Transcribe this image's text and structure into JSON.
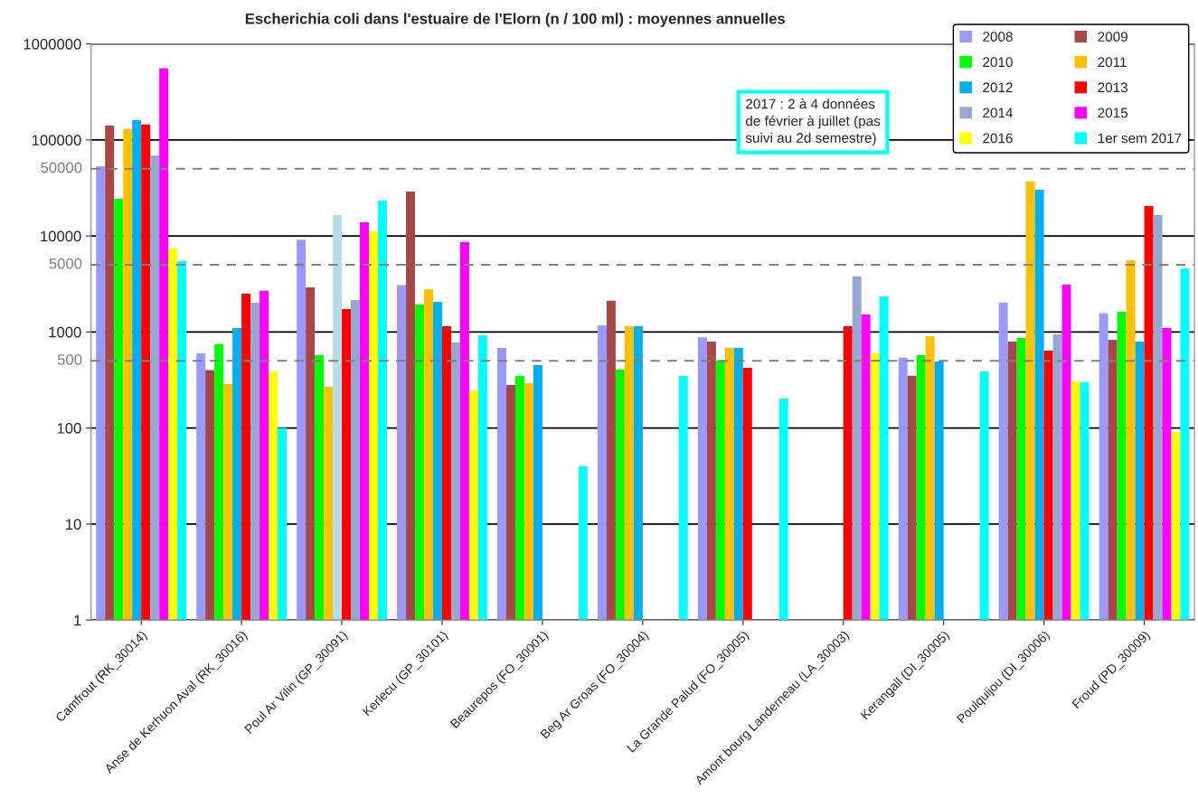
{
  "chart_data": {
    "type": "bar",
    "title": "Escherichia coli dans l'estuaire de l'Elorn (n / 100 ml) : moyennes annuelles",
    "categories": [
      "Camfrout (RK_30014)",
      "Anse de Kerhuon Aval (RK_30016)",
      "Poul Ar Vilin (GP_30091)",
      "Kerlecu (GP_30101)",
      "Beaurepos (FO_30001)",
      "Beg Ar Groas (FO_30004)",
      "La Grande Palud (FO_30005)",
      "Amont bourg Landerneau (LA_30003)",
      "Kerangall (DI_30005)",
      "Poulquijou (DI_30006)",
      "Froud (PD_30009)"
    ],
    "series": [
      {
        "name": "2008",
        "color": "#9999ff",
        "values": [
          53000,
          600,
          9150,
          3070,
          680,
          1170,
          880,
          null,
          540,
          2030,
          1570
        ]
      },
      {
        "name": "2009",
        "color": "#a94646",
        "values": [
          141000,
          400,
          2920,
          29000,
          280,
          2110,
          795,
          null,
          350,
          795,
          830
        ]
      },
      {
        "name": "2010",
        "color": "#00ff00",
        "values": [
          24400,
          745,
          574,
          1930,
          350,
          406,
          504,
          null,
          574,
          867,
          1625
        ]
      },
      {
        "name": "2011",
        "color": "#ffc000",
        "values": [
          130000,
          287,
          269,
          2790,
          293,
          1150,
          683,
          null,
          905,
          36900,
          5600
        ]
      },
      {
        "name": "2012",
        "color": "#00b0f0",
        "colors": [
          "#00b0f0",
          "#00b0f0",
          "#b7dde8",
          "#00b0f0",
          "#00b0f0",
          "#00b0f0",
          "#00b0f0",
          "#00b0f0",
          "#00b0f0",
          "#00b0f0",
          "#00b0f0"
        ],
        "values": [
          161000,
          1100,
          16500,
          2060,
          452,
          1150,
          683,
          null,
          493,
          30300,
          795
        ]
      },
      {
        "name": "2013",
        "color": "#ff0000",
        "values": [
          145000,
          2500,
          1730,
          1150,
          null,
          null,
          424,
          1150,
          null,
          640,
          20500
        ]
      },
      {
        "name": "2014",
        "color": "#95a9d0",
        "values": [
          69000,
          2020,
          2150,
          778,
          null,
          null,
          null,
          3790,
          null,
          945,
          16500
        ]
      },
      {
        "name": "2015",
        "color": "#ff00ff",
        "values": [
          558000,
          2680,
          13900,
          8630,
          null,
          null,
          null,
          1520,
          null,
          3110,
          1100
        ]
      },
      {
        "name": "2016",
        "color": "#ffff00",
        "values": [
          7400,
          388,
          11200,
          246,
          null,
          null,
          null,
          600,
          null,
          306,
          91
        ]
      },
      {
        "name": "1er sem 2017",
        "color": "#00ffff",
        "values": [
          5500,
          100,
          23400,
          925,
          40,
          349,
          203,
          2350,
          388,
          300,
          4600
        ]
      }
    ],
    "log": true,
    "ylim": [
      1,
      1000000
    ],
    "yticks": [
      1,
      10,
      100,
      1000,
      10000,
      100000,
      1000000
    ],
    "grid": "y",
    "legend": "top right",
    "ref_lines": [
      {
        "axis": "y",
        "value": 50000,
        "label": "50000",
        "color": "#808080",
        "line_style": "dashed"
      },
      {
        "axis": "y",
        "value": 5000,
        "label": "5000",
        "color": "#808080",
        "line_style": "dashed"
      },
      {
        "axis": "y",
        "value": 500,
        "label": "500",
        "color": "#808080",
        "line_style": "dashed"
      }
    ],
    "annotations": [
      "2017 : 2 à 4 données\nde février à juillet (pas\nsuivi au 2d semestre)"
    ]
  }
}
